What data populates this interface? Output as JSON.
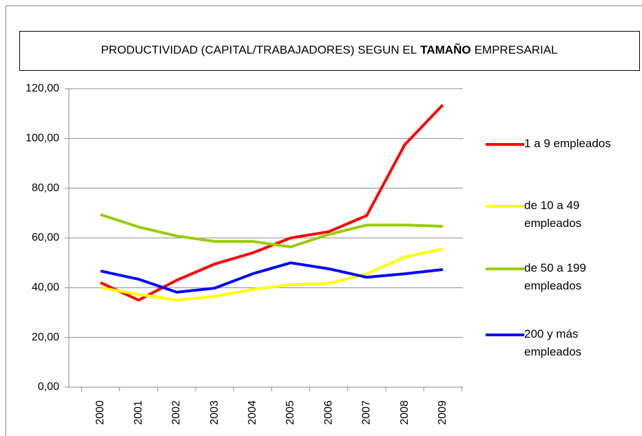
{
  "chart_data": {
    "type": "line",
    "title": [
      "PRODUCTIVIDAD (CAPITAL/TRABAJADORES) SEGUN EL",
      "TAMAÑO",
      "EMPRESARIAL"
    ],
    "title_bold": [
      false,
      true,
      false
    ],
    "categories": [
      "2000",
      "2001",
      "2002",
      "2003",
      "2004",
      "2005",
      "2006",
      "2007",
      "2008",
      "2009"
    ],
    "series": [
      {
        "name": "1 a 9 empleados",
        "color": "#ff0000",
        "values": [
          42,
          35,
          43,
          49.5,
          54,
          60,
          62.5,
          69,
          97.5,
          113.5
        ]
      },
      {
        "name": "de 10 a 49 empleados",
        "color": "#ffff00",
        "values": [
          40,
          37.3,
          35,
          36.5,
          39.3,
          41.2,
          41.7,
          45.6,
          52.3,
          55.6
        ]
      },
      {
        "name": "de 50 a 199 empleados",
        "color": "#99cc00",
        "values": [
          69.4,
          64.4,
          60.8,
          58.6,
          58.6,
          56.4,
          61.4,
          65.2,
          65.2,
          64.7
        ]
      },
      {
        "name": "200 y más empleados",
        "color": "#0000ff",
        "values": [
          46.7,
          43.4,
          38.2,
          39.8,
          45.6,
          50,
          47.6,
          44.2,
          45.6,
          47.3
        ]
      }
    ],
    "ylim": [
      0,
      120
    ],
    "yticks": [
      {
        "value": 0,
        "label": "0,00"
      },
      {
        "value": 20,
        "label": "20,00"
      },
      {
        "value": 40,
        "label": "40,00"
      },
      {
        "value": 60,
        "label": "60,00"
      },
      {
        "value": 80,
        "label": "80,00"
      },
      {
        "value": 100,
        "label": "100,00"
      },
      {
        "value": 120,
        "label": "120,00"
      }
    ],
    "grid": true
  }
}
